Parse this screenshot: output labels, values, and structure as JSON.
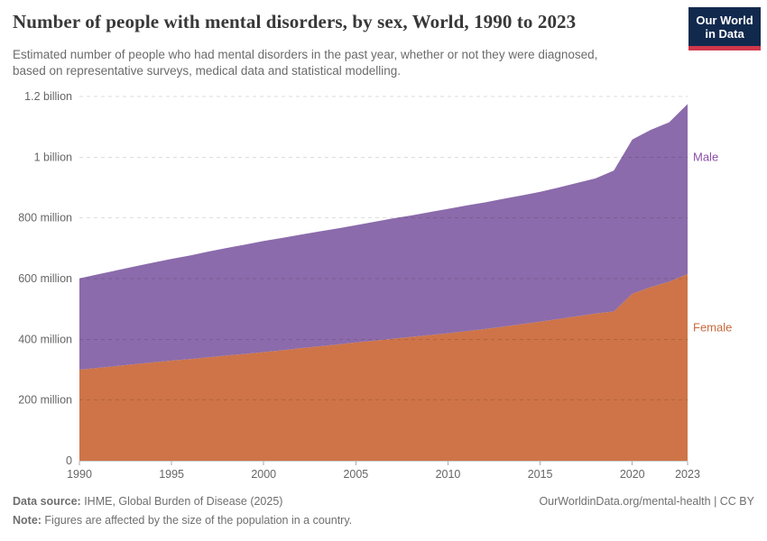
{
  "header": {
    "title": "Number of people with mental disorders, by sex, World, 1990 to 2023",
    "logo": {
      "line1": "Our World",
      "line2": "in Data"
    }
  },
  "subtitle": {
    "line1": "Estimated number of people who had mental disorders in the past year, whether or not they were diagnosed,",
    "line2": "based on representative surveys, medical data and statistical modelling."
  },
  "chart_data": {
    "type": "area",
    "stacked": true,
    "title": "Number of people with mental disorders, by sex, World, 1990 to 2023",
    "unit": "people (millions)",
    "x": [
      1990,
      1991,
      1992,
      1993,
      1994,
      1995,
      1996,
      1997,
      1998,
      1999,
      2000,
      2001,
      2002,
      2003,
      2004,
      2005,
      2006,
      2007,
      2008,
      2009,
      2010,
      2011,
      2012,
      2013,
      2014,
      2015,
      2016,
      2017,
      2018,
      2019,
      2020,
      2021,
      2022,
      2023
    ],
    "series": [
      {
        "name": "Female",
        "color": "#ce7448",
        "label_color": "#c8693c",
        "values": [
          300,
          306,
          312,
          318,
          324,
          330,
          335,
          341,
          347,
          352,
          358,
          364,
          371,
          377,
          383,
          390,
          396,
          402,
          408,
          414,
          420,
          427,
          434,
          442,
          450,
          458,
          467,
          476,
          485,
          492,
          550,
          572,
          590,
          615
        ]
      },
      {
        "name": "Male",
        "color": "#8b6bab",
        "label_color": "#8a4fa8",
        "values": [
          301,
          308,
          315,
          322,
          329,
          335,
          341,
          348,
          354,
          360,
          366,
          370,
          374,
          378,
          382,
          386,
          391,
          396,
          400,
          405,
          410,
          414,
          417,
          421,
          424,
          428,
          433,
          439,
          445,
          464,
          508,
          518,
          525,
          560
        ]
      }
    ],
    "ylim": [
      0,
      1200
    ],
    "yticks": [
      {
        "value": 0,
        "label": "0"
      },
      {
        "value": 200,
        "label": "200 million"
      },
      {
        "value": 400,
        "label": "400 million"
      },
      {
        "value": 600,
        "label": "600 million"
      },
      {
        "value": 800,
        "label": "800 million"
      },
      {
        "value": 1000,
        "label": "1 billion"
      },
      {
        "value": 1200,
        "label": "1.2 billion"
      }
    ],
    "xticks": [
      1990,
      1995,
      2000,
      2005,
      2010,
      2015,
      2020,
      2023
    ],
    "grid": "dashed-horizontal",
    "legend_position": "right-edge-labels"
  },
  "footer": {
    "datasource_label": "Data source:",
    "datasource_text": " IHME, Global Burden of Disease (2025)",
    "link_text": "OurWorldinData.org/mental-health | CC BY",
    "note_label": "Note:",
    "note_text": " Figures are affected by the size of the population in a country."
  }
}
